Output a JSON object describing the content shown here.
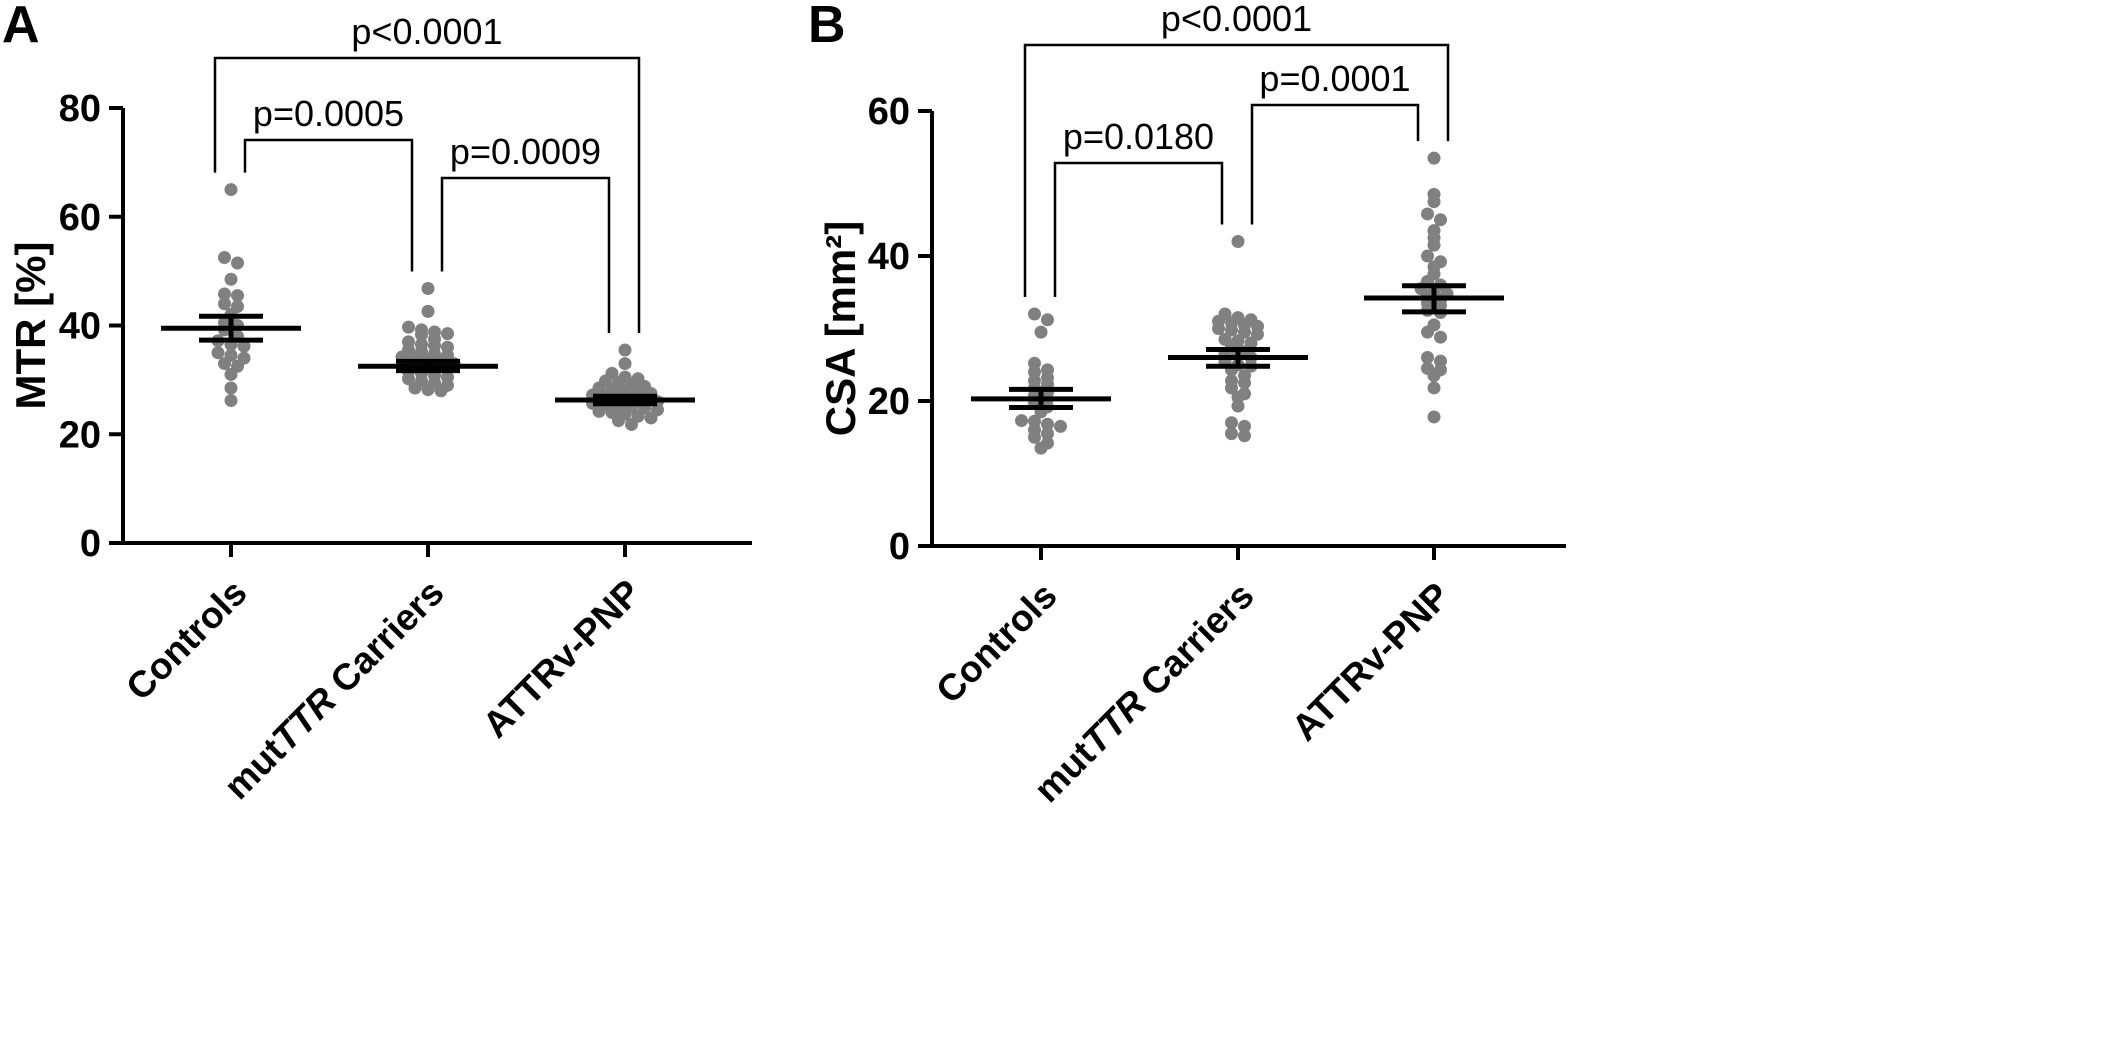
{
  "chart_data": [
    {
      "type": "scatter",
      "panel_letter": "A",
      "ylabel": "MTR [%]",
      "ylim": [
        0,
        80
      ],
      "yticks": [
        0,
        20,
        40,
        60,
        80
      ],
      "categories": [
        {
          "pre": "",
          "italic": "",
          "post": "Controls"
        },
        {
          "pre": "mut",
          "italic": "TTR",
          "post": " Carriers"
        },
        {
          "pre": "",
          "italic": "",
          "post": "ATTRv-PNP"
        }
      ],
      "groups": [
        {
          "mean": 39.5,
          "sem_low": 37.3,
          "sem_high": 41.7,
          "values": [
            65,
            52.5,
            51.5,
            48.5,
            45.8,
            45.5,
            44,
            43.5,
            42,
            40.5,
            40,
            39.2,
            38,
            37.2,
            36.5,
            36.2,
            35,
            34.5,
            34,
            33,
            32.5,
            31,
            28.5,
            26.2
          ]
        },
        {
          "mean": 32.5,
          "sem_low": 31.7,
          "sem_high": 33.4,
          "values": [
            46.8,
            42.6,
            39.7,
            39.2,
            38.8,
            38.5,
            38.3,
            37.5,
            37,
            36.5,
            36.3,
            36,
            35.5,
            35.2,
            34.8,
            34.5,
            34.2,
            34,
            33.7,
            33.3,
            33,
            32.8,
            32.5,
            32.2,
            32,
            31.5,
            31.2,
            30.8,
            30.5,
            30.2,
            29.8,
            29.5,
            29,
            28.5,
            28.2,
            28
          ]
        },
        {
          "mean": 26.3,
          "sem_low": 25.6,
          "sem_high": 27.0,
          "values": [
            35.5,
            33,
            31.2,
            30.5,
            30.2,
            29.8,
            29.5,
            29.2,
            28.8,
            28.5,
            28.2,
            28,
            27.7,
            27.5,
            27.2,
            27,
            26.8,
            26.5,
            26.2,
            26,
            25.7,
            25.5,
            25.2,
            25,
            24.8,
            24.5,
            24.2,
            24,
            23.7,
            23.3,
            23,
            22.5,
            21.8
          ]
        }
      ],
      "comparisons": [
        {
          "from": 0,
          "to": 2,
          "label": "p<0.0001",
          "level": 1
        },
        {
          "from": 0,
          "to": 1,
          "label": "p=0.0005",
          "level": 2
        },
        {
          "from": 1,
          "to": 2,
          "label": "p=0.0009",
          "level": 3
        }
      ]
    },
    {
      "type": "scatter",
      "panel_letter": "B",
      "ylabel": "CSA [mm²]",
      "ylim": [
        0,
        60
      ],
      "yticks": [
        0,
        20,
        40,
        60
      ],
      "categories": [
        {
          "pre": "",
          "italic": "",
          "post": "Controls"
        },
        {
          "pre": "mut",
          "italic": "TTR",
          "post": " Carriers"
        },
        {
          "pre": "",
          "italic": "",
          "post": "ATTRv-PNP"
        }
      ],
      "groups": [
        {
          "mean": 20.3,
          "sem_low": 19.1,
          "sem_high": 21.6,
          "values": [
            32,
            31.2,
            29.5,
            25.2,
            24.3,
            24,
            23.2,
            22.8,
            22.3,
            21.8,
            21.2,
            20.8,
            20.3,
            19.8,
            19.2,
            18.5,
            17.3,
            17.2,
            16.8,
            16.5,
            16,
            15.5,
            15,
            14.2,
            13.5
          ]
        },
        {
          "mean": 26.0,
          "sem_low": 24.8,
          "sem_high": 27.1,
          "values": [
            42,
            32,
            31.5,
            31.2,
            31,
            30.8,
            30.5,
            30.3,
            30,
            29.8,
            29.5,
            29.2,
            28.5,
            28.3,
            28,
            27.5,
            26.8,
            26.5,
            26.3,
            26,
            25.5,
            25,
            24.8,
            24.3,
            23.5,
            22.8,
            22.5,
            21.8,
            21,
            20.5,
            19.3,
            17,
            16.5,
            15.5,
            15.2
          ]
        },
        {
          "mean": 34.2,
          "sem_low": 32.3,
          "sem_high": 35.9,
          "values": [
            53.5,
            48.5,
            47.5,
            45.8,
            45,
            43.5,
            42.5,
            41.5,
            40,
            39.2,
            38.5,
            37.5,
            36.5,
            36,
            35.5,
            35.2,
            34.8,
            34.5,
            34,
            33.5,
            33.2,
            32.5,
            32.2,
            30.5,
            29.5,
            28.8,
            26,
            25.5,
            24.5,
            24.3,
            23.5,
            21.8,
            17.8
          ]
        }
      ],
      "comparisons": [
        {
          "from": 0,
          "to": 2,
          "label": "p<0.0001",
          "level": 1
        },
        {
          "from": 1,
          "to": 2,
          "label": "p=0.0001",
          "level": 2
        },
        {
          "from": 0,
          "to": 1,
          "label": "p=0.0180",
          "level": 3
        }
      ]
    }
  ]
}
